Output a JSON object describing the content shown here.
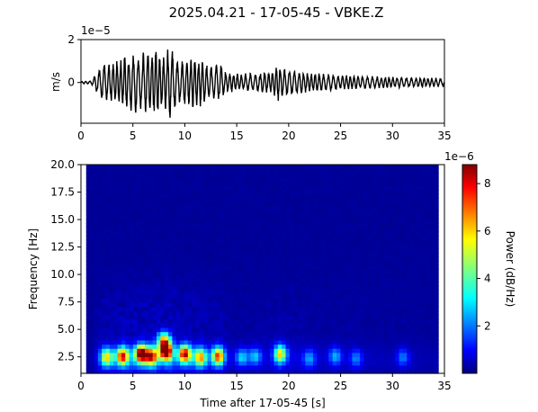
{
  "title": "2025.04.21 - 17-05-45 - VBKE.Z",
  "chart_data": [
    {
      "type": "line",
      "name": "waveform",
      "ylabel": "m/s",
      "y_scale_label": "1e−5",
      "xlim": [
        0,
        35
      ],
      "ylim": [
        -1.9,
        2.0
      ],
      "x_ticks": [
        "0",
        "5",
        "10",
        "15",
        "20",
        "25",
        "30",
        "35"
      ],
      "y_ticks": [
        "2",
        "0"
      ],
      "y_tick_values": [
        2,
        0
      ],
      "envelope": {
        "t": [
          0,
          1.0,
          1.5,
          2.0,
          3.0,
          4.0,
          5.0,
          5.5,
          6.5,
          7.0,
          8.0,
          8.5,
          9.5,
          10.5,
          11.5,
          12.5,
          13.5,
          14.0,
          15.0,
          17.0,
          18.5,
          19.0,
          19.5,
          20.5,
          22.0,
          25.0,
          28.0,
          31.0,
          35.0
        ],
        "amp": [
          0.05,
          0.08,
          0.5,
          0.9,
          0.95,
          1.2,
          1.5,
          1.35,
          1.55,
          1.75,
          1.2,
          1.8,
          1.1,
          1.2,
          1.1,
          0.8,
          0.95,
          0.5,
          0.4,
          0.45,
          0.55,
          0.9,
          0.7,
          0.6,
          0.45,
          0.35,
          0.3,
          0.25,
          0.2
        ]
      }
    },
    {
      "type": "heatmap",
      "name": "spectrogram",
      "xlabel": "Time after 17-05-45 [s]",
      "ylabel": "Frequency [Hz]",
      "xlim": [
        0,
        35
      ],
      "ylim": [
        1.0,
        20.0
      ],
      "x_ticks": [
        "0",
        "5",
        "10",
        "15",
        "20",
        "25",
        "30",
        "35"
      ],
      "x_tick_values": [
        0,
        5,
        10,
        15,
        20,
        25,
        30,
        35
      ],
      "y_ticks": [
        "20.0",
        "17.5",
        "15.0",
        "12.5",
        "10.0",
        "7.5",
        "5.0",
        "2.5"
      ],
      "y_tick_values": [
        20.0,
        17.5,
        15.0,
        12.5,
        10.0,
        7.5,
        5.0,
        2.5
      ],
      "colormap": "jet",
      "hot_spots": [
        {
          "t": 2.5,
          "f": 2.5,
          "power": 5.0
        },
        {
          "t": 4.0,
          "f": 2.6,
          "power": 7.0
        },
        {
          "t": 5.8,
          "f": 2.8,
          "power": 8.6
        },
        {
          "t": 6.8,
          "f": 2.6,
          "power": 6.5
        },
        {
          "t": 8.2,
          "f": 3.0,
          "power": 8.7
        },
        {
          "t": 8.0,
          "f": 4.0,
          "power": 5.5
        },
        {
          "t": 10.0,
          "f": 2.8,
          "power": 7.5
        },
        {
          "t": 11.5,
          "f": 2.5,
          "power": 5.5
        },
        {
          "t": 13.2,
          "f": 2.6,
          "power": 6.5
        },
        {
          "t": 15.5,
          "f": 2.5,
          "power": 2.5
        },
        {
          "t": 16.8,
          "f": 2.6,
          "power": 2.3
        },
        {
          "t": 19.2,
          "f": 2.8,
          "power": 5.0
        },
        {
          "t": 22.0,
          "f": 2.4,
          "power": 2.0
        },
        {
          "t": 24.5,
          "f": 2.6,
          "power": 2.2
        },
        {
          "t": 26.5,
          "f": 2.4,
          "power": 1.8
        },
        {
          "t": 31.0,
          "f": 2.5,
          "power": 1.8
        }
      ]
    },
    {
      "type": "colorbar",
      "name": "colorbar",
      "label": "Power (dB/Hz)",
      "scale_label": "1e−6",
      "range": [
        0,
        8.8
      ],
      "ticks": [
        "8",
        "6",
        "4",
        "2"
      ],
      "tick_values": [
        8,
        6,
        4,
        2
      ]
    }
  ]
}
